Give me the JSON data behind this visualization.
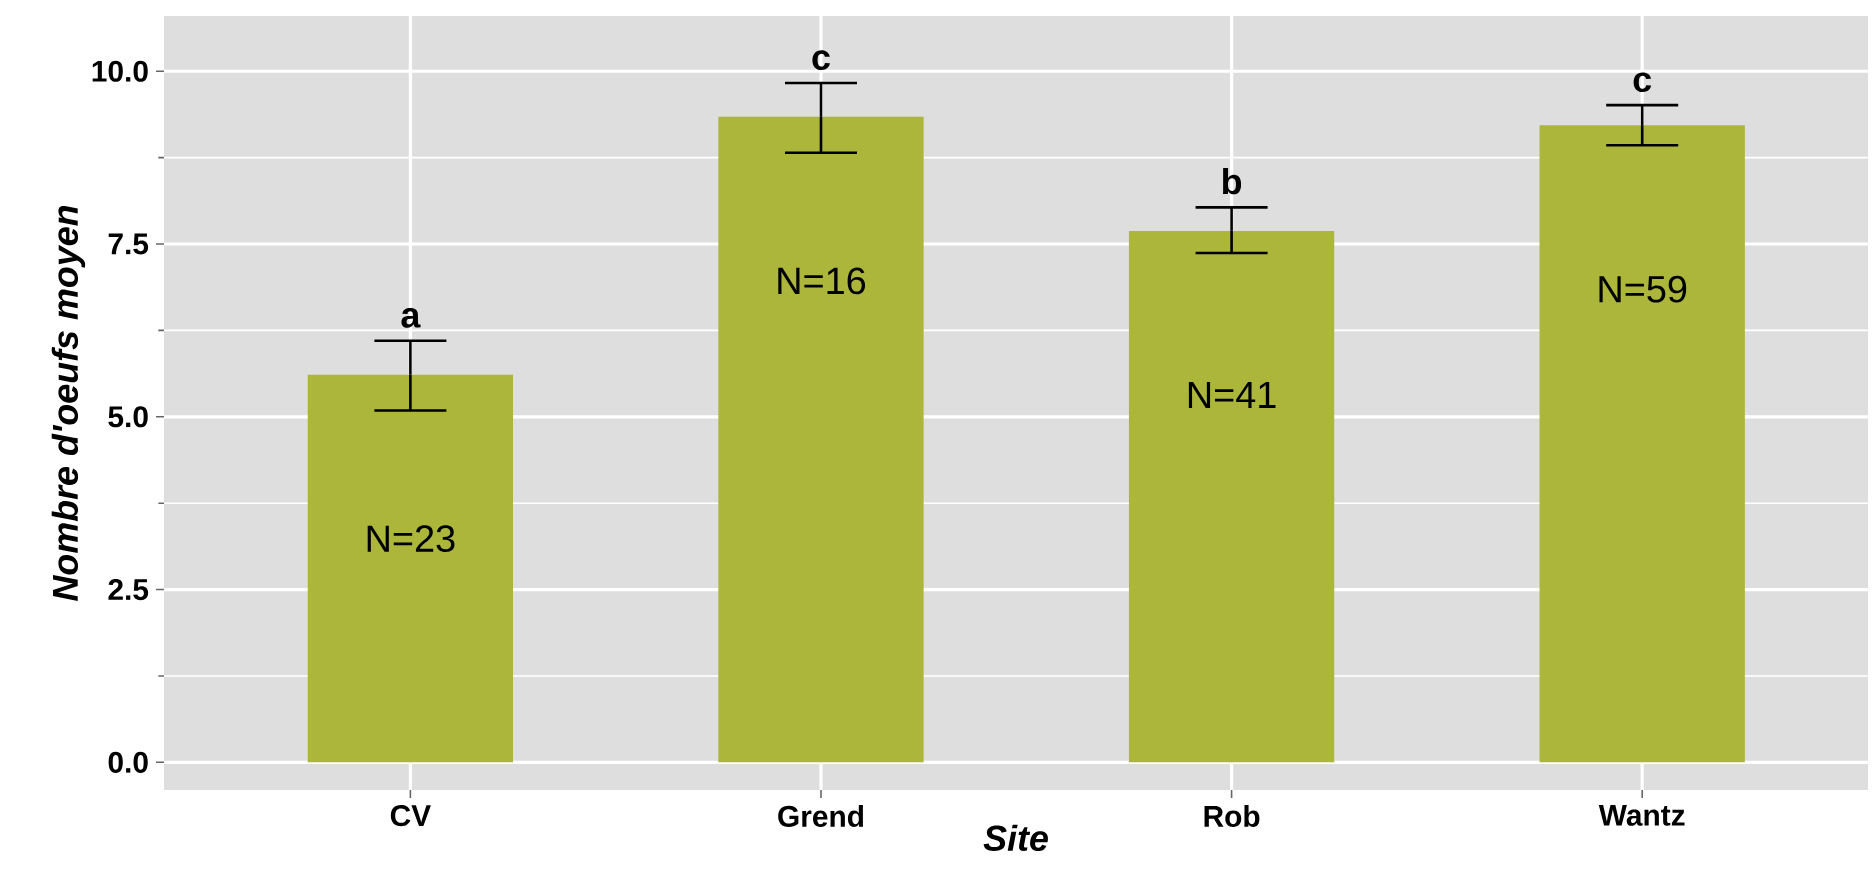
{
  "chart_data": {
    "type": "bar",
    "xlabel": "Site",
    "ylabel": "Nombre d'oeufs moyen",
    "categories": [
      "CV",
      "Grend",
      "Rob",
      "Wantz"
    ],
    "values": [
      5.61,
      9.34,
      7.69,
      9.22
    ],
    "errors": [
      [
        5.09,
        6.1
      ],
      [
        8.82,
        9.83
      ],
      [
        7.37,
        8.03
      ],
      [
        8.93,
        9.51
      ]
    ],
    "color": "#abb63a",
    "ylim": [
      -0.4,
      10.8
    ],
    "yticks": [
      {
        "value": 0,
        "label": "0.0"
      },
      {
        "value": 2.5,
        "label": "2.5"
      },
      {
        "value": 5,
        "label": "5.0"
      },
      {
        "value": 7.5,
        "label": "7.5"
      },
      {
        "value": 10,
        "label": "10.0"
      }
    ],
    "grid": true,
    "annotations": [
      "a",
      "c",
      "b",
      "c",
      "N=23",
      "N=16",
      "N=41",
      "N=59"
    ]
  }
}
